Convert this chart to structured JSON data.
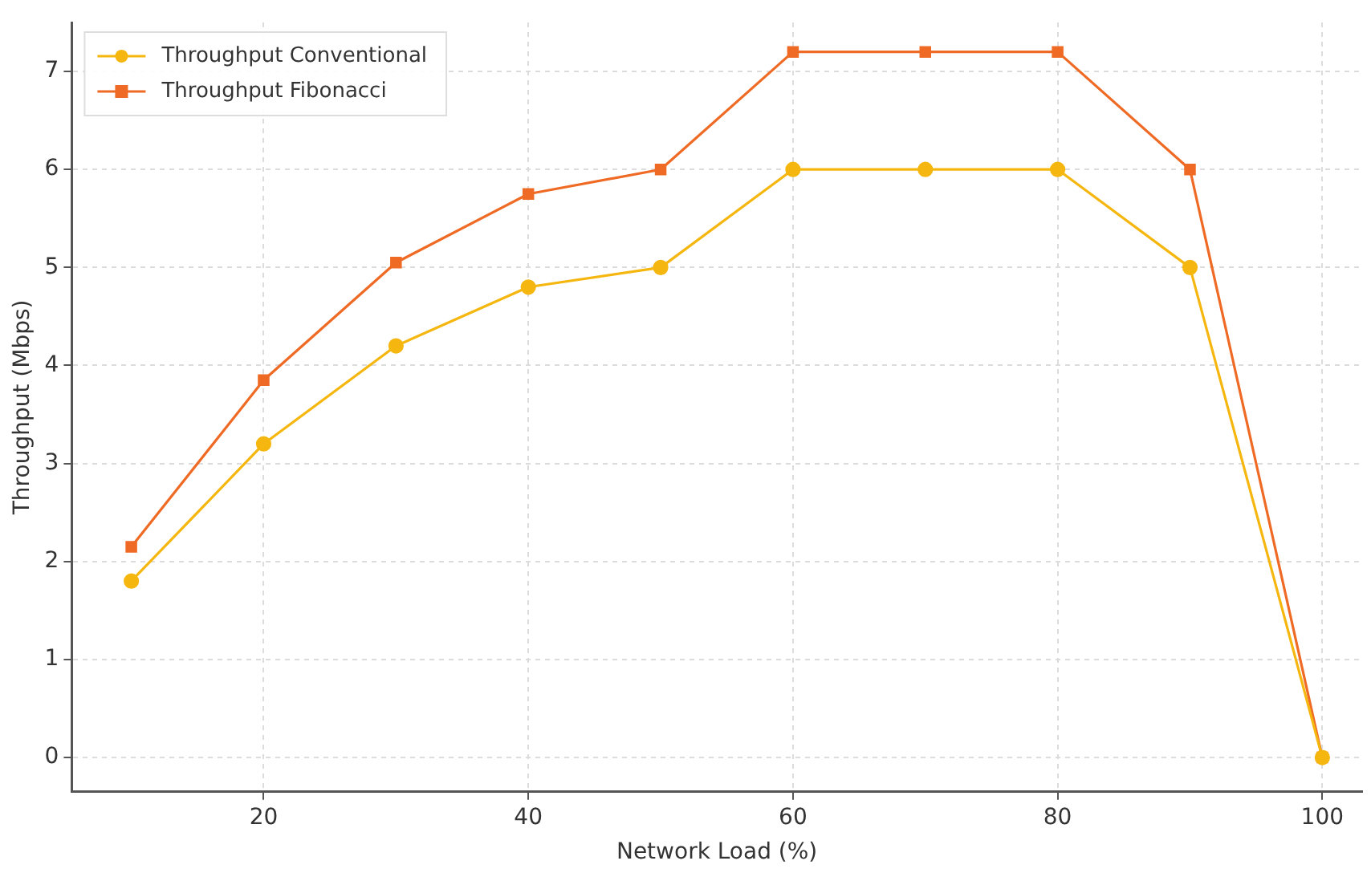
{
  "chart_data": {
    "type": "line",
    "xlabel": "Network Load (%)",
    "ylabel": "Throughput (Mbps)",
    "x": [
      10,
      20,
      30,
      40,
      50,
      60,
      70,
      80,
      90,
      100
    ],
    "series": [
      {
        "name": "Throughput Conventional",
        "color": "#f5b70f",
        "marker": "circle",
        "values": [
          1.8,
          3.2,
          4.2,
          4.8,
          5,
          6,
          6,
          6,
          5,
          0
        ]
      },
      {
        "name": "Throughput Fibonacci",
        "color": "#ef6a24",
        "marker": "square",
        "values": [
          2.15,
          3.85,
          5.05,
          5.75,
          6,
          7.2,
          7.2,
          7.2,
          6,
          0
        ]
      }
    ],
    "xlim": [
      5.5,
      103
    ],
    "xticks": [
      20,
      40,
      60,
      80,
      100
    ],
    "ylim": [
      -0.35,
      7.5
    ],
    "yticks": [
      0,
      1,
      2,
      3,
      4,
      5,
      6,
      7
    ],
    "grid": true,
    "legend": "top left",
    "line_style": "solid"
  }
}
